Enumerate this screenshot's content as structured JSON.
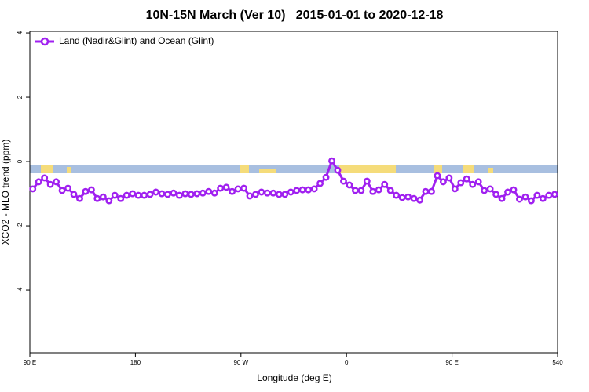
{
  "chart_data": {
    "type": "line",
    "title": "10N-15N March (Ver 10)   2015-01-01 to 2020-12-18",
    "x_label": "Longitude (deg E)",
    "y_label": "XCO2 - MLO trend (ppm)",
    "xlim": [
      90,
      540
    ],
    "xticks": [
      {
        "value": 90,
        "label": "90 E"
      },
      180,
      {
        "value": 270,
        "label": "90 W"
      },
      {
        "value": 360,
        "label": "0"
      },
      {
        "value": 450,
        "label": "90 E"
      },
      540
    ],
    "ylim": [
      -5.95,
      4.05
    ],
    "yticks": [
      -4,
      -2,
      0,
      2,
      4
    ],
    "legend": "top-left",
    "x": [
      92.5,
      97.5,
      102.5,
      107.5,
      112.5,
      117.5,
      122.5,
      127.5,
      132.5,
      137.5,
      142.5,
      147.5,
      152.5,
      157.5,
      162.5,
      167.5,
      172.5,
      177.5,
      182.5,
      187.5,
      192.5,
      197.5,
      202.5,
      207.5,
      212.5,
      217.5,
      222.5,
      227.5,
      232.5,
      237.5,
      242.5,
      247.5,
      252.5,
      257.5,
      262.5,
      267.5,
      272.5,
      277.5,
      282.5,
      287.5,
      292.5,
      297.5,
      302.5,
      307.5,
      312.5,
      317.5,
      322.5,
      327.5,
      332.5,
      337.5,
      342.5,
      347.5,
      352.5,
      357.5,
      362.5,
      367.5,
      372.5,
      377.5,
      382.5,
      387.5,
      392.5,
      397.5,
      402.5,
      407.5,
      412.5,
      417.5,
      422.5,
      427.5,
      432.5,
      437.5,
      442.5,
      447.5,
      452.5,
      457.5,
      462.5,
      467.5,
      472.5,
      477.5,
      482.5,
      487.5,
      492.5,
      497.5,
      502.5,
      507.5,
      512.5,
      517.5,
      522.5,
      527.5,
      532.5,
      537.5
    ],
    "series": [
      {
        "name": "Land (Nadir&Glint) and Ocean (Glint)",
        "color": "#a020f0",
        "values": [
          -0.85,
          -0.63,
          -0.51,
          -0.71,
          -0.63,
          -0.9,
          -0.83,
          -1.02,
          -1.15,
          -0.93,
          -0.88,
          -1.15,
          -1.1,
          -1.22,
          -1.05,
          -1.15,
          -1.05,
          -1.0,
          -1.05,
          -1.05,
          -1.02,
          -0.95,
          -1.0,
          -1.02,
          -0.98,
          -1.05,
          -1.0,
          -1.02,
          -1.0,
          -0.98,
          -0.93,
          -0.98,
          -0.83,
          -0.8,
          -0.93,
          -0.85,
          -0.83,
          -1.07,
          -1.02,
          -0.95,
          -0.98,
          -0.98,
          -1.02,
          -1.02,
          -0.95,
          -0.9,
          -0.88,
          -0.88,
          -0.85,
          -0.68,
          -0.49,
          0.02,
          -0.27,
          -0.61,
          -0.73,
          -0.9,
          -0.9,
          -0.61,
          -0.93,
          -0.88,
          -0.71,
          -0.9,
          -1.05,
          -1.12,
          -1.1,
          -1.15,
          -1.2,
          -0.93,
          -0.93,
          -0.44,
          -0.63,
          -0.51,
          -0.85,
          -0.66,
          -0.54,
          -0.71,
          -0.63,
          -0.9,
          -0.85,
          -1.02,
          -1.15,
          -0.95,
          -0.88,
          -1.17,
          -1.1,
          -1.22,
          -1.05,
          -1.15,
          -1.05,
          -1.02
        ]
      }
    ]
  }
}
